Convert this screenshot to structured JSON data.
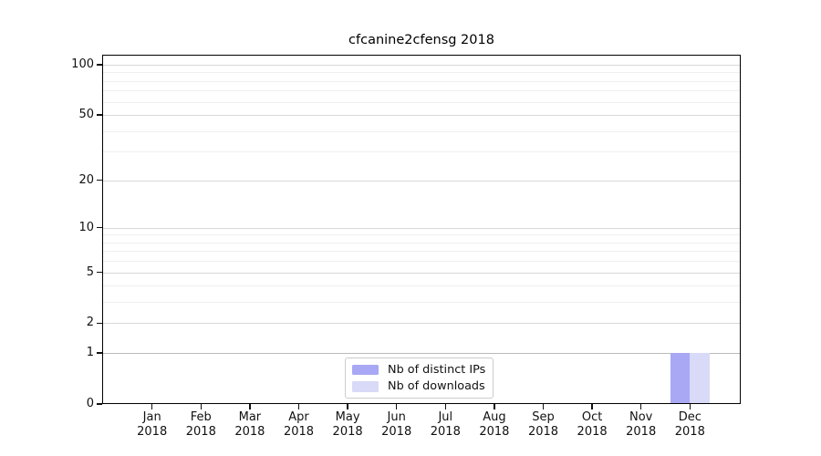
{
  "chart_data": {
    "type": "bar",
    "title": "cfcanine2cfensg 2018",
    "categories": [
      "Jan 2018",
      "Feb 2018",
      "Mar 2018",
      "Apr 2018",
      "May 2018",
      "Jun 2018",
      "Jul 2018",
      "Aug 2018",
      "Sep 2018",
      "Oct 2018",
      "Nov 2018",
      "Dec 2018"
    ],
    "series": [
      {
        "name": "Nb of distinct IPs",
        "color": "#a8a8f5",
        "values": [
          0,
          0,
          0,
          0,
          0,
          0,
          0,
          0,
          0,
          0,
          0,
          1
        ]
      },
      {
        "name": "Nb of downloads",
        "color": "#d9d9f8",
        "values": [
          0,
          0,
          0,
          0,
          0,
          0,
          0,
          0,
          0,
          0,
          0,
          1
        ]
      }
    ],
    "xlabel": "",
    "ylabel": "",
    "yscale": "log1p",
    "ylim": [
      0,
      115
    ],
    "yticks": [
      0,
      1,
      2,
      5,
      10,
      20,
      50,
      100
    ],
    "yticks_minor": [
      3,
      4,
      6,
      7,
      8,
      9,
      30,
      40,
      60,
      70,
      80,
      90
    ],
    "grid": "horizontal",
    "legend_position": "lower center"
  }
}
